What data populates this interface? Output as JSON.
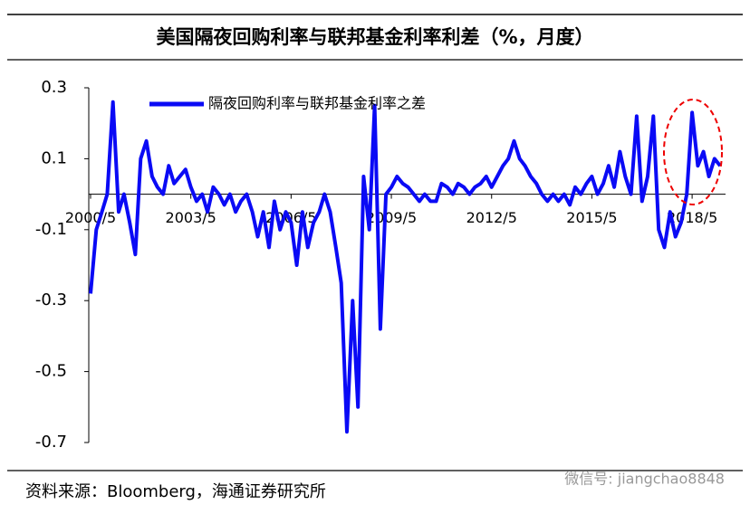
{
  "chart_data": {
    "type": "line",
    "title": "美国隔夜回购利率与联邦基金利率利差（%，月度）",
    "source": "资料来源：Bloomberg，海通证券研究所",
    "watermark": "微信号: jiangchao8848",
    "x": [
      2000.33,
      2000.5,
      2000.67,
      2000.83,
      2001.0,
      2001.17,
      2001.33,
      2001.5,
      2001.67,
      2001.83,
      2002.0,
      2002.17,
      2002.33,
      2002.5,
      2002.67,
      2002.83,
      2003.0,
      2003.17,
      2003.33,
      2003.5,
      2003.67,
      2003.83,
      2004.0,
      2004.17,
      2004.33,
      2004.5,
      2004.67,
      2004.83,
      2005.0,
      2005.17,
      2005.33,
      2005.5,
      2005.67,
      2005.83,
      2006.0,
      2006.17,
      2006.33,
      2006.5,
      2006.67,
      2006.83,
      2007.0,
      2007.17,
      2007.33,
      2007.5,
      2007.67,
      2007.83,
      2008.0,
      2008.17,
      2008.33,
      2008.5,
      2008.67,
      2008.83,
      2009.0,
      2009.17,
      2009.33,
      2009.5,
      2009.67,
      2009.83,
      2010.0,
      2010.17,
      2010.33,
      2010.5,
      2010.67,
      2010.83,
      2011.0,
      2011.17,
      2011.33,
      2011.5,
      2011.67,
      2011.83,
      2012.0,
      2012.17,
      2012.33,
      2012.5,
      2012.67,
      2012.83,
      2013.0,
      2013.17,
      2013.33,
      2013.5,
      2013.67,
      2013.83,
      2014.0,
      2014.17,
      2014.33,
      2014.5,
      2014.67,
      2014.83,
      2015.0,
      2015.17,
      2015.33,
      2015.5,
      2015.67,
      2015.83,
      2016.0,
      2016.17,
      2016.33,
      2016.5,
      2016.67,
      2016.83,
      2017.0,
      2017.17,
      2017.33,
      2017.5,
      2017.67,
      2017.83,
      2018.0,
      2018.17,
      2018.33,
      2018.5,
      2018.67,
      2018.83,
      2019.0,
      2019.17
    ],
    "series": [
      {
        "name": "隔夜回购利率与联邦基金利率之差",
        "color": "#0a0af5",
        "values": [
          -0.28,
          -0.1,
          -0.05,
          0.0,
          0.26,
          -0.05,
          0.0,
          -0.08,
          -0.17,
          0.1,
          0.15,
          0.05,
          0.02,
          0.0,
          0.08,
          0.03,
          0.05,
          0.07,
          0.02,
          -0.02,
          0.0,
          -0.05,
          0.02,
          0.0,
          -0.03,
          0.0,
          -0.05,
          -0.02,
          0.0,
          -0.05,
          -0.12,
          -0.05,
          -0.15,
          -0.02,
          -0.1,
          -0.05,
          -0.08,
          -0.2,
          -0.05,
          -0.15,
          -0.08,
          -0.05,
          0.0,
          -0.05,
          -0.15,
          -0.25,
          -0.67,
          -0.3,
          -0.6,
          0.05,
          -0.1,
          0.25,
          -0.38,
          0.0,
          0.02,
          0.05,
          0.03,
          0.02,
          0.0,
          -0.02,
          0.0,
          -0.02,
          -0.02,
          0.03,
          0.02,
          0.0,
          0.03,
          0.02,
          0.0,
          0.02,
          0.03,
          0.05,
          0.02,
          0.05,
          0.08,
          0.1,
          0.15,
          0.1,
          0.08,
          0.05,
          0.03,
          0.0,
          -0.02,
          0.0,
          -0.02,
          0.0,
          -0.03,
          0.02,
          0.0,
          0.03,
          0.05,
          0.0,
          0.03,
          0.08,
          0.02,
          0.12,
          0.05,
          0.0,
          0.22,
          -0.02,
          0.05,
          0.22,
          -0.1,
          -0.15,
          -0.05,
          -0.12,
          -0.08,
          0.0,
          0.23,
          0.08,
          0.12,
          0.05,
          0.1,
          0.08
        ]
      }
    ],
    "xlim": [
      2000.33,
      2019.33
    ],
    "xticks": [
      {
        "value": 2000.33,
        "label": "2000/5"
      },
      {
        "value": 2003.33,
        "label": "2003/5"
      },
      {
        "value": 2006.33,
        "label": "2006/5"
      },
      {
        "value": 2009.33,
        "label": "2009/5"
      },
      {
        "value": 2012.33,
        "label": "2012/5"
      },
      {
        "value": 2015.33,
        "label": "2015/5"
      },
      {
        "value": 2018.33,
        "label": "2018/5"
      }
    ],
    "ylim": [
      -0.7,
      0.3
    ],
    "yticks": [
      0.3,
      0.1,
      -0.1,
      -0.3,
      -0.5,
      -0.7
    ]
  }
}
